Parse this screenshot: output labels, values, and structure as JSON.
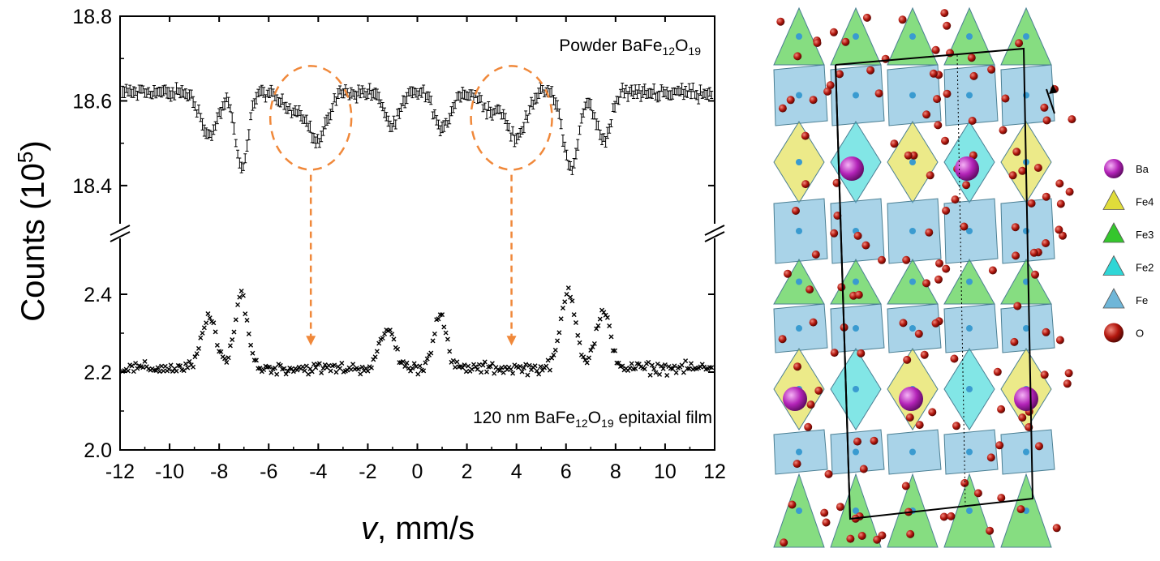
{
  "chart_data": {
    "type": "scatter",
    "xlabel": {
      "var": "v",
      "rest": ", mm/s"
    },
    "ylabel": {
      "base": "Counts (10",
      "sup": "5",
      "close": ")"
    },
    "xlim": [
      -12,
      12
    ],
    "xticks": [
      -12,
      -10,
      -8,
      -6,
      -4,
      -2,
      0,
      2,
      4,
      6,
      8,
      10,
      12
    ],
    "upper_panel": {
      "ylim": [
        18.35,
        18.8
      ],
      "yticks": [
        18.4,
        18.6,
        18.8
      ],
      "label": {
        "pre": "Powder BaFe",
        "sub1": "12",
        "mid": "O",
        "sub2": "19",
        "post": ""
      },
      "baseline": 18.62,
      "dips": [
        {
          "center": -8.4,
          "depth": 0.1,
          "width": 0.35
        },
        {
          "center": -7.1,
          "depth": 0.18,
          "width": 0.25
        },
        {
          "center": -5.0,
          "depth": 0.04,
          "width": 0.5
        },
        {
          "center": -4.0,
          "depth": 0.11,
          "width": 0.35
        },
        {
          "center": -1.0,
          "depth": 0.08,
          "width": 0.3
        },
        {
          "center": 1.0,
          "depth": 0.09,
          "width": 0.3
        },
        {
          "center": 3.0,
          "depth": 0.04,
          "width": 0.4
        },
        {
          "center": 4.0,
          "depth": 0.11,
          "width": 0.35
        },
        {
          "center": 6.2,
          "depth": 0.18,
          "width": 0.3
        },
        {
          "center": 7.5,
          "depth": 0.11,
          "width": 0.3
        }
      ]
    },
    "lower_panel": {
      "ylim": [
        2.0,
        2.5
      ],
      "yticks": [
        2.0,
        2.2,
        2.4
      ],
      "label": {
        "pre": "120 nm BaFe",
        "sub1": "12",
        "mid": "O",
        "sub2": "19",
        "post": " epitaxial film"
      },
      "baseline": 2.21,
      "peaks": [
        {
          "center": -8.4,
          "height": 0.13,
          "width": 0.3
        },
        {
          "center": -7.1,
          "height": 0.19,
          "width": 0.25
        },
        {
          "center": -1.2,
          "height": 0.1,
          "width": 0.3
        },
        {
          "center": 0.9,
          "height": 0.14,
          "width": 0.25
        },
        {
          "center": 6.1,
          "height": 0.2,
          "width": 0.3
        },
        {
          "center": 7.5,
          "height": 0.14,
          "width": 0.3
        }
      ]
    },
    "annotations": [
      {
        "type": "dashed-ellipse",
        "x": -4.3,
        "y": 18.56
      },
      {
        "type": "dashed-ellipse",
        "x": 3.8,
        "y": 18.56
      },
      {
        "type": "dashed-arrow",
        "x": -4.3,
        "from": 18.41,
        "to": 2.26
      },
      {
        "type": "dashed-arrow",
        "x": 3.8,
        "from": 18.41,
        "to": 2.26
      }
    ],
    "annotation_color": "#f0883a",
    "marker_color": "#000000"
  },
  "crystal": {
    "legend": [
      {
        "label": "Ba",
        "color": "#b323b8",
        "shape": "sphere"
      },
      {
        "label": "Fe4",
        "color": "#e0dc3a",
        "shape": "tetra"
      },
      {
        "label": "Fe3",
        "color": "#35c62d",
        "shape": "tetra"
      },
      {
        "label": "Fe2",
        "color": "#2fd6d6",
        "shape": "tetra"
      },
      {
        "label": "Fe",
        "color": "#6fb6d8",
        "shape": "tetra"
      },
      {
        "label": "O",
        "color": "#b2160d",
        "shape": "sphere"
      }
    ]
  }
}
